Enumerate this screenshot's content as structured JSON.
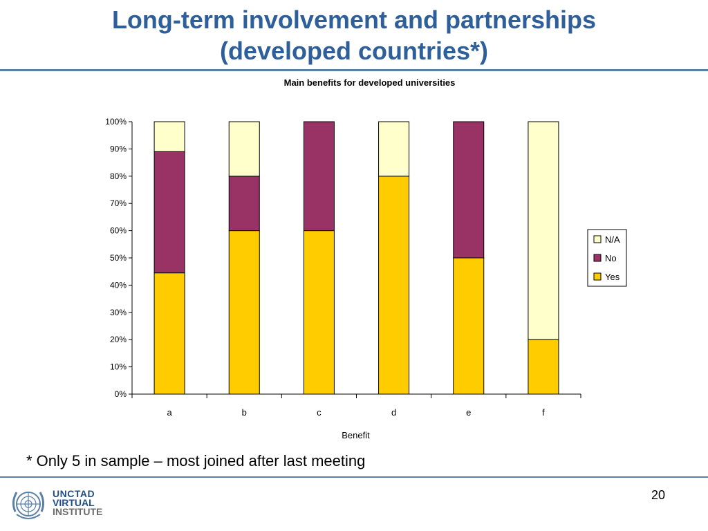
{
  "slide": {
    "title_line1": "Long-term involvement and partnerships",
    "title_line2": "(developed countries*)",
    "footnote": "* Only 5 in sample – most joined after last meeting",
    "page_number": "20",
    "logo": {
      "line1": "UNCTAD",
      "line2": "VIRTUAL",
      "line3": "INSTITUTE"
    }
  },
  "colors": {
    "title": "#2e5f9a",
    "rule": "#5a7fa8"
  },
  "chart_data": {
    "type": "bar",
    "stacked": true,
    "title": "Main benefits for developed universities",
    "xlabel": "Benefit",
    "ylabel": "",
    "categories": [
      "a",
      "b",
      "c",
      "d",
      "e",
      "f"
    ],
    "series": [
      {
        "name": "Yes",
        "color": "#ffcc00",
        "values": [
          44.5,
          60,
          60,
          80,
          50,
          20
        ]
      },
      {
        "name": "No",
        "color": "#993366",
        "values": [
          44.5,
          20,
          40,
          0,
          50,
          0
        ]
      },
      {
        "name": "N/A",
        "color": "#ffffcc",
        "values": [
          11,
          20,
          0,
          20,
          0,
          80
        ]
      }
    ],
    "ylim": [
      0,
      100
    ],
    "yticks": [
      "0%",
      "10%",
      "20%",
      "30%",
      "40%",
      "50%",
      "60%",
      "70%",
      "80%",
      "90%",
      "100%"
    ],
    "legend_order": [
      "N/A",
      "No",
      "Yes"
    ],
    "legend_position": "right",
    "grid": false
  }
}
